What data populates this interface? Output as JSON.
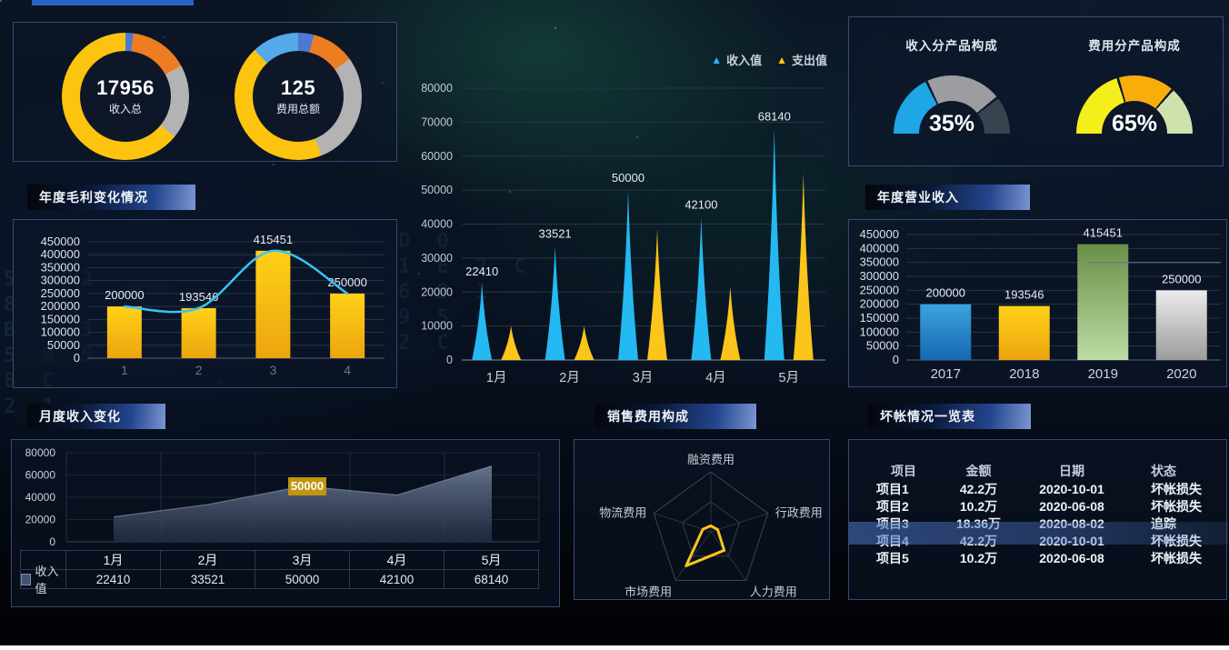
{
  "chart_data": [
    {
      "id": "income-total-donut",
      "type": "donut",
      "value": "17956",
      "label": "收入总",
      "segments": [
        {
          "name": "blue",
          "color": "#4d79d2",
          "pct": 2
        },
        {
          "name": "orange",
          "color": "#ee7c23",
          "pct": 15
        },
        {
          "name": "gray",
          "color": "#b3b3b3",
          "pct": 19
        },
        {
          "name": "gold",
          "color": "#fdc40f",
          "pct": 64
        }
      ]
    },
    {
      "id": "expense-total-donut",
      "type": "donut",
      "value": "125",
      "label": "费用总额",
      "segments": [
        {
          "name": "blue",
          "color": "#4d79d2",
          "pct": 4
        },
        {
          "name": "orange",
          "color": "#ee7c23",
          "pct": 11
        },
        {
          "name": "gray",
          "color": "#b3b3b3",
          "pct": 29
        },
        {
          "name": "gold",
          "color": "#fdc40f",
          "pct": 44
        },
        {
          "name": "lightblue",
          "color": "#55a9e8",
          "pct": 12
        }
      ]
    },
    {
      "id": "income-by-product-gauge",
      "type": "gauge",
      "title": "收入分产品构成",
      "value": "35%",
      "segments": [
        {
          "color": "#1ea6e6",
          "pct": 35
        },
        {
          "color": "#9b9da0",
          "pct": 43
        },
        {
          "color": "#39424f",
          "pct": 22
        }
      ]
    },
    {
      "id": "expense-by-product-gauge",
      "type": "gauge",
      "title": "费用分产品构成",
      "value": "65%",
      "segments": [
        {
          "color": "#f4ef1b",
          "pct": 40
        },
        {
          "color": "#f8ad09",
          "pct": 32
        },
        {
          "color": "#cfe2ad",
          "pct": 28
        }
      ]
    },
    {
      "id": "annual-gross-profit",
      "type": "bar",
      "title": "年度毛利变化情况",
      "categories": [
        "1",
        "2",
        "3",
        "4"
      ],
      "values": [
        200000,
        193546,
        415451,
        250000
      ],
      "value_labels": [
        "200000",
        "193546",
        "415451",
        "250000"
      ],
      "ylim": [
        0,
        450000
      ],
      "ytick_step": 50000,
      "bar_color_top": "#ffd117",
      "bar_color_bottom": "#eca50e",
      "line_color": "#38c4f2",
      "grid": true
    },
    {
      "id": "monthly-income-expense",
      "type": "bar",
      "categories": [
        "1月",
        "2月",
        "3月",
        "4月",
        "5月"
      ],
      "series": [
        {
          "name": "收入值",
          "color": "#25b9f1",
          "values": [
            22410,
            33521,
            50000,
            42100,
            68140
          ]
        },
        {
          "name": "支出值",
          "color": "#fcc51b",
          "values": [
            10000,
            10000,
            38500,
            21500,
            55000
          ]
        }
      ],
      "value_labels": [
        "22410",
        "33521",
        "50000",
        "42100",
        "68140"
      ],
      "ylim": [
        0,
        80000
      ],
      "ytick_step": 10000,
      "legend_position": "top-right",
      "grid": true
    },
    {
      "id": "annual-revenue",
      "type": "bar",
      "title": "年度营业收入",
      "categories": [
        "2017",
        "2018",
        "2019",
        "2020"
      ],
      "values": [
        200000,
        193546,
        415451,
        250000
      ],
      "value_labels": [
        "200000",
        "193546",
        "415451",
        "250000"
      ],
      "ylim": [
        0,
        450000
      ],
      "ytick_step": 50000,
      "mark_line": 350000,
      "bar_gradients": [
        [
          "#3ba3de",
          "#1668b0"
        ],
        [
          "#ffd117",
          "#eca50e"
        ],
        [
          "#698f47",
          "#bcdca4"
        ],
        [
          "#ebebeb",
          "#9c9c9c"
        ]
      ],
      "grid": true
    },
    {
      "id": "monthly-income-area",
      "type": "area",
      "title": "月度收入变化",
      "categories": [
        "1月",
        "2月",
        "3月",
        "4月",
        "5月"
      ],
      "series": [
        {
          "name": "收入值",
          "values": [
            22410,
            33521,
            50000,
            42100,
            68140
          ]
        }
      ],
      "ylim": [
        0,
        80000
      ],
      "ytick_step": 20000,
      "tooltip": {
        "category": "3月",
        "text": "50000"
      },
      "fill_top": "#6b7a96",
      "fill_bottom": "#242e44",
      "grid": true
    },
    {
      "id": "selling-expense-radar",
      "type": "radar",
      "title": "销售费用构成",
      "axes": [
        "融资费用",
        "行政费用",
        "人力费用",
        "市场费用",
        "物流费用"
      ],
      "values": [
        10,
        12,
        38,
        70,
        14
      ],
      "max": 100,
      "stroke_color": "#fcc51b"
    },
    {
      "id": "bad-debt-table",
      "type": "table",
      "title": "坏帐情况一览表",
      "headers": [
        "项目",
        "金额",
        "日期",
        "状态"
      ],
      "rows": [
        [
          "项目1",
          "42.2万",
          "2020-10-01",
          "坏帐损失"
        ],
        [
          "项目2",
          "10.2万",
          "2020-06-08",
          "坏帐损失"
        ],
        [
          "项目3",
          "18.36万",
          "2020-08-02",
          "追踪"
        ],
        [
          "项目4",
          "42.2万",
          "2020-10-01",
          "坏帐损失"
        ],
        [
          "项目5",
          "10.2万",
          "2020-06-08",
          "坏帐损失"
        ]
      ],
      "highlighted_row": "项目4",
      "highlight_color": "#3c5fa0"
    }
  ],
  "background": {
    "matrix_glyphs_left": [
      "5 9 2",
      "8",
      "B F 3",
      "5 9 5",
      "8 C",
      "2 1"
    ],
    "matrix_glyphs_mid": [
      "D 0",
      "1 E 2 C",
      "6 9 1",
      "9 5 C",
      "2 C 1"
    ],
    "top_edge_color": "#2d62c8",
    "bottom_strip_color": "#ffffff"
  }
}
